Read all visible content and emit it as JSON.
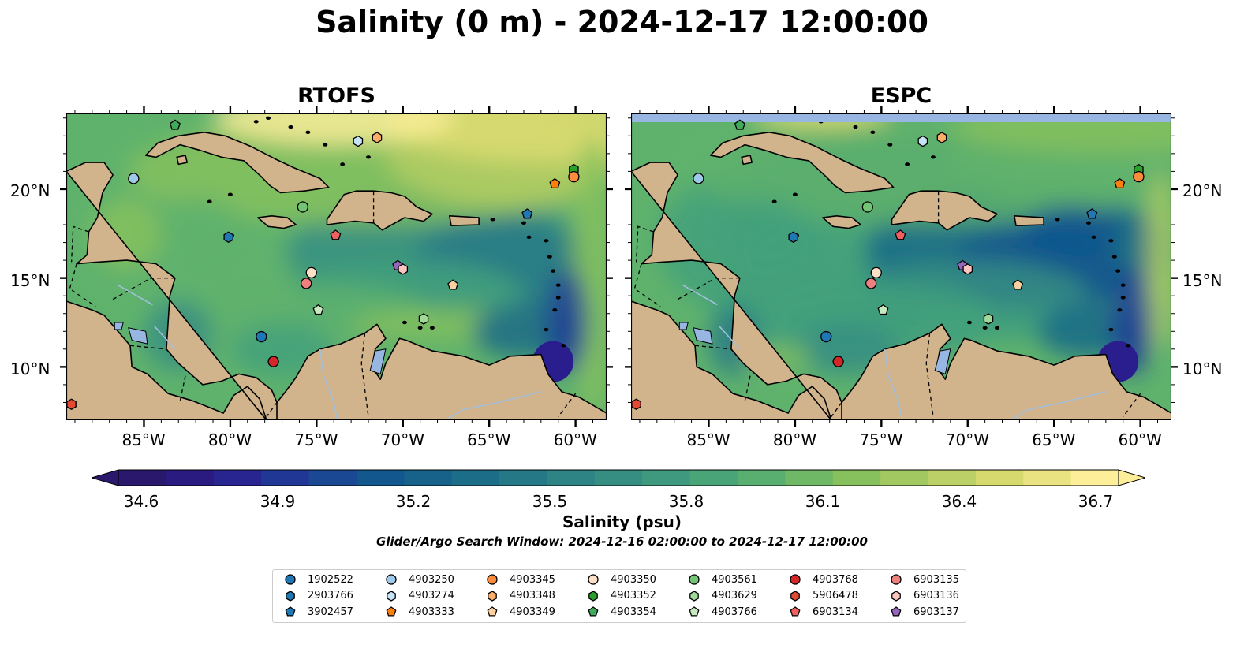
{
  "title": "Salinity (0 m) - 2024-12-17 12:00:00",
  "panels": [
    {
      "name": "RTOFS",
      "title": "RTOFS"
    },
    {
      "name": "ESPC",
      "title": "ESPC"
    }
  ],
  "axes": {
    "lon_ticks": [
      "85°W",
      "80°W",
      "75°W",
      "70°W",
      "65°W",
      "60°W"
    ],
    "lat_ticks": [
      "20°N",
      "15°N",
      "10°N"
    ],
    "lon_range": [
      -89.5,
      -58.2
    ],
    "lat_range": [
      7.0,
      24.3
    ]
  },
  "colorbar": {
    "label": "Salinity (psu)",
    "ticks": [
      "34.6",
      "34.9",
      "35.2",
      "35.5",
      "35.8",
      "36.1",
      "36.4",
      "36.7"
    ],
    "range": [
      34.6,
      36.7
    ],
    "extend": "both",
    "colormap": "haline",
    "colors": [
      "#2a186c",
      "#2a1d8e",
      "#1f3e97",
      "#12578e",
      "#186a88",
      "#287b86",
      "#368e82",
      "#43a17b",
      "#5fb26c",
      "#86c15d",
      "#b3cd63",
      "#dddc71",
      "#fdee99"
    ]
  },
  "search_window": "Glider/Argo Search Window: 2024-12-16 02:00:00 to 2024-12-17 12:00:00",
  "colors": {
    "land": "#d2b48c",
    "lakes": "#97b6e1",
    "pacific": "#2a186c",
    "no_data_band": "#97b6e1"
  },
  "legend": [
    {
      "id": "1902522",
      "shape": "circle",
      "color": "#1f77b4"
    },
    {
      "id": "2903766",
      "shape": "hexagon",
      "color": "#1f77b4"
    },
    {
      "id": "3902457",
      "shape": "pentagon",
      "color": "#1f77b4"
    },
    {
      "id": "4903250",
      "shape": "circle",
      "color": "#9ecae9"
    },
    {
      "id": "4903274",
      "shape": "hexagon",
      "color": "#c6e4f7"
    },
    {
      "id": "4903333",
      "shape": "pentagon",
      "color": "#ff7f0e"
    },
    {
      "id": "4903345",
      "shape": "circle",
      "color": "#fd8d3c"
    },
    {
      "id": "4903348",
      "shape": "hexagon",
      "color": "#fdae6b"
    },
    {
      "id": "4903349",
      "shape": "pentagon",
      "color": "#fdd0a2"
    },
    {
      "id": "4903350",
      "shape": "circle",
      "color": "#fde0c5"
    },
    {
      "id": "4903352",
      "shape": "hexagon",
      "color": "#2ca02c"
    },
    {
      "id": "4903354",
      "shape": "pentagon",
      "color": "#41ab5d"
    },
    {
      "id": "4903561",
      "shape": "circle",
      "color": "#74c476"
    },
    {
      "id": "4903629",
      "shape": "hexagon",
      "color": "#a1d99b"
    },
    {
      "id": "4903766",
      "shape": "pentagon",
      "color": "#c7e9c0"
    },
    {
      "id": "4903768",
      "shape": "circle",
      "color": "#d62728"
    },
    {
      "id": "5906478",
      "shape": "hexagon",
      "color": "#e34a33"
    },
    {
      "id": "6903134",
      "shape": "pentagon",
      "color": "#f16060"
    },
    {
      "id": "6903135",
      "shape": "circle",
      "color": "#f08080"
    },
    {
      "id": "6903136",
      "shape": "hexagon",
      "color": "#fcc5c0"
    },
    {
      "id": "6903137",
      "shape": "pentagon",
      "color": "#9467bd"
    }
  ],
  "floats": [
    {
      "id": "4903354",
      "lon": -83.2,
      "lat": 23.6
    },
    {
      "id": "4903250",
      "lon": -85.6,
      "lat": 20.6
    },
    {
      "id": "4903274",
      "lon": -72.6,
      "lat": 22.7
    },
    {
      "id": "4903348",
      "lon": -71.5,
      "lat": 22.9
    },
    {
      "id": "4903352",
      "lon": -60.1,
      "lat": 21.1
    },
    {
      "id": "4903345",
      "lon": -60.1,
      "lat": 20.7
    },
    {
      "id": "4903333",
      "lon": -61.2,
      "lat": 20.3
    },
    {
      "id": "4903561",
      "lon": -75.8,
      "lat": 19.0
    },
    {
      "id": "2903766",
      "lon": -80.1,
      "lat": 17.3
    },
    {
      "id": "6903134",
      "lon": -73.9,
      "lat": 17.4
    },
    {
      "id": "3902457",
      "lon": -62.8,
      "lat": 18.6
    },
    {
      "id": "6903137",
      "lon": -70.3,
      "lat": 15.7
    },
    {
      "id": "6903136",
      "lon": -70.0,
      "lat": 15.5
    },
    {
      "id": "4903350",
      "lon": -75.3,
      "lat": 15.3
    },
    {
      "id": "6903135",
      "lon": -75.6,
      "lat": 14.7
    },
    {
      "id": "4903349",
      "lon": -67.1,
      "lat": 14.6
    },
    {
      "id": "4903766",
      "lon": -74.9,
      "lat": 13.2
    },
    {
      "id": "4903629",
      "lon": -68.8,
      "lat": 12.7
    },
    {
      "id": "1902522",
      "lon": -78.2,
      "lat": 11.7
    },
    {
      "id": "4903768",
      "lon": -77.5,
      "lat": 10.3
    },
    {
      "id": "5906478",
      "lon": -89.2,
      "lat": 7.9
    }
  ]
}
